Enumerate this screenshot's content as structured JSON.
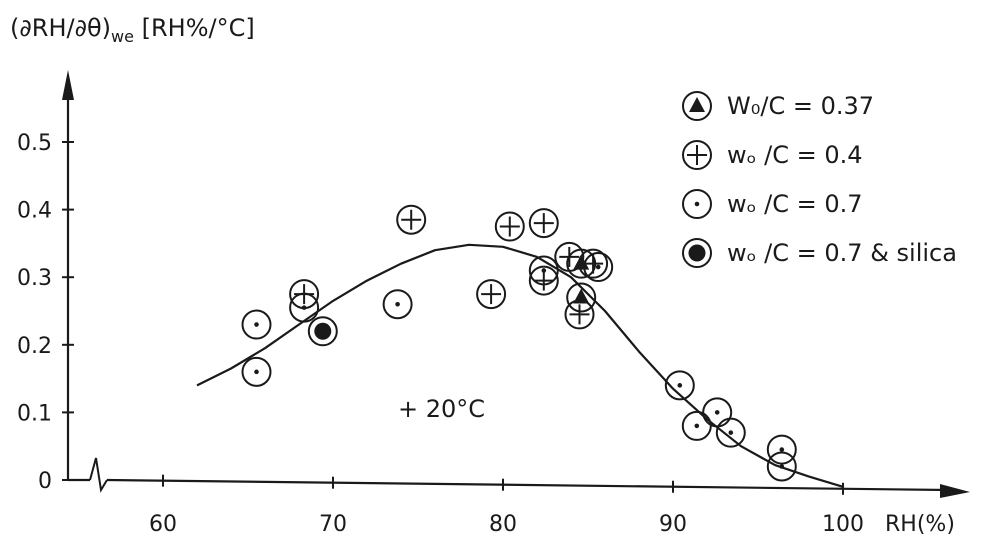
{
  "chart_data": {
    "type": "scatter",
    "title": "",
    "ylabel": "(∂RH/∂θ)",
    "ylabel_sub": "we",
    "ylabel_unit": "[RH%/°C]",
    "xlabel": "RH(%)",
    "xlim": [
      55,
      102
    ],
    "ylim": [
      0,
      0.55
    ],
    "xticks": [
      60,
      70,
      80,
      90,
      100
    ],
    "yticks": [
      0,
      0.1,
      0.2,
      0.3,
      0.4,
      0.5
    ],
    "xtick_labels": [
      "60",
      "70",
      "80",
      "90",
      "100"
    ],
    "ytick_labels": [
      "0",
      "0.1",
      "0.2",
      "0.3",
      "0.4",
      "0.5"
    ],
    "annotation": "+ 20°C",
    "legend_position": "top-right",
    "grid": false,
    "series": [
      {
        "name": "W₀/C = 0.37",
        "marker": "triangle",
        "points": [
          [
            84.6,
            0.32
          ],
          [
            84.6,
            0.27
          ]
        ]
      },
      {
        "name": "wₒ /C = 0.4",
        "marker": "plus",
        "points": [
          [
            68.3,
            0.275
          ],
          [
            74.6,
            0.385
          ],
          [
            79.3,
            0.275
          ],
          [
            80.4,
            0.375
          ],
          [
            82.4,
            0.38
          ],
          [
            82.4,
            0.295
          ],
          [
            83.9,
            0.33
          ],
          [
            84.5,
            0.245
          ],
          [
            85.3,
            0.32
          ]
        ]
      },
      {
        "name": "wₒ /C = 0.7",
        "marker": "dot",
        "points": [
          [
            65.5,
            0.23
          ],
          [
            65.5,
            0.16
          ],
          [
            68.3,
            0.255
          ],
          [
            73.8,
            0.26
          ],
          [
            82.4,
            0.31
          ],
          [
            85.6,
            0.315
          ],
          [
            90.4,
            0.14
          ],
          [
            91.4,
            0.08
          ],
          [
            92.6,
            0.1
          ],
          [
            93.4,
            0.07
          ],
          [
            96.4,
            0.045
          ],
          [
            96.4,
            0.02
          ]
        ]
      },
      {
        "name": "wₒ /C = 0.7 & silica",
        "marker": "filled",
        "points": [
          [
            69.4,
            0.22
          ]
        ]
      }
    ],
    "fit_curve": {
      "x": [
        62,
        64,
        66,
        68,
        70,
        72,
        74,
        76,
        78,
        80,
        82,
        84,
        86,
        88,
        90,
        92,
        94,
        96,
        98,
        100
      ],
      "y": [
        0.14,
        0.165,
        0.195,
        0.23,
        0.265,
        0.295,
        0.32,
        0.34,
        0.348,
        0.345,
        0.33,
        0.3,
        0.25,
        0.19,
        0.135,
        0.09,
        0.05,
        0.022,
        0.005,
        -0.01
      ]
    }
  }
}
